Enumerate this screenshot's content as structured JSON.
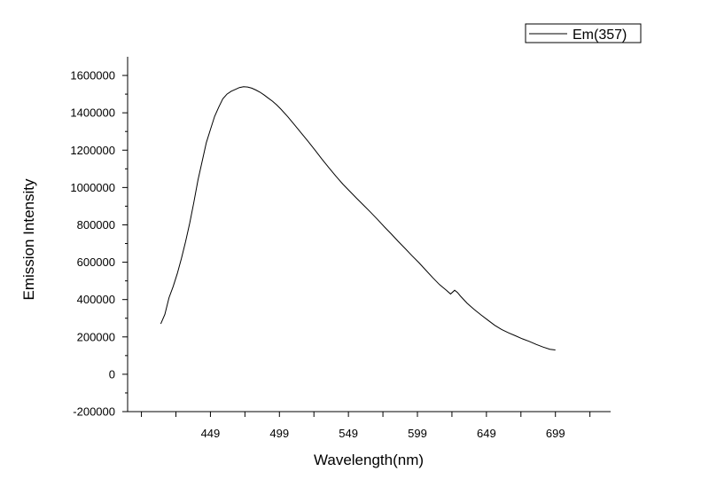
{
  "chart_data": {
    "type": "line",
    "xlabel": "Wavelength(nm)",
    "ylabel": "Emission Intensity",
    "xlim": [
      389,
      739
    ],
    "ylim": [
      -200000,
      1700000
    ],
    "x_ticks": [
      449,
      499,
      549,
      599,
      649,
      699
    ],
    "y_ticks": [
      -200000,
      0,
      200000,
      400000,
      600000,
      800000,
      1000000,
      1200000,
      1400000,
      1600000
    ],
    "grid": false,
    "legend_position": "top-right",
    "line_color": "#000000",
    "series": [
      {
        "name": "Em(357)",
        "x": [
          413,
          416,
          419,
          422,
          425,
          428,
          431,
          434,
          437,
          440,
          443,
          446,
          449,
          452,
          455,
          458,
          461,
          464,
          467,
          470,
          473,
          476,
          479,
          482,
          485,
          488,
          491,
          494,
          497,
          500,
          505,
          510,
          515,
          520,
          525,
          530,
          535,
          540,
          545,
          550,
          555,
          560,
          565,
          570,
          575,
          580,
          585,
          590,
          595,
          600,
          605,
          610,
          615,
          620,
          623,
          626,
          628,
          630,
          635,
          640,
          645,
          650,
          655,
          660,
          665,
          670,
          675,
          680,
          685,
          690,
          695,
          699
        ],
        "y": [
          270000,
          320000,
          410000,
          470000,
          540000,
          620000,
          710000,
          810000,
          920000,
          1040000,
          1140000,
          1240000,
          1310000,
          1380000,
          1430000,
          1475000,
          1500000,
          1515000,
          1525000,
          1535000,
          1540000,
          1538000,
          1532000,
          1522000,
          1510000,
          1495000,
          1478000,
          1462000,
          1442000,
          1420000,
          1380000,
          1335000,
          1290000,
          1245000,
          1198000,
          1150000,
          1105000,
          1060000,
          1018000,
          980000,
          942000,
          905000,
          868000,
          830000,
          790000,
          752000,
          712000,
          674000,
          635000,
          598000,
          558000,
          518000,
          480000,
          450000,
          430000,
          450000,
          438000,
          420000,
          380000,
          348000,
          318000,
          290000,
          262000,
          240000,
          222000,
          206000,
          190000,
          176000,
          160000,
          146000,
          134000,
          130000
        ]
      }
    ]
  }
}
